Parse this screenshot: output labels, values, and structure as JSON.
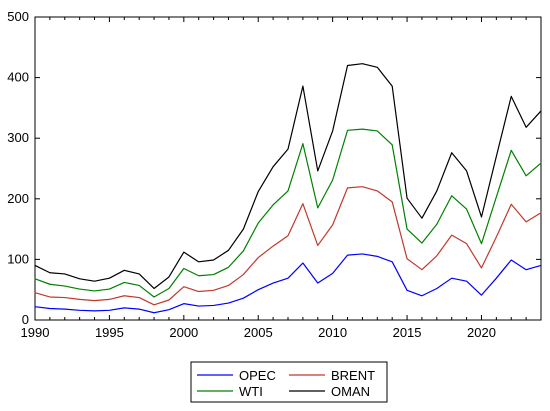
{
  "chart_data": {
    "type": "line",
    "title": "",
    "xlabel": "",
    "ylabel": "",
    "xlim": [
      1990,
      2024
    ],
    "ylim": [
      0,
      500
    ],
    "x_ticks": [
      1990,
      1995,
      2000,
      2005,
      2010,
      2015,
      2020
    ],
    "y_ticks": [
      0,
      100,
      200,
      300,
      400,
      500
    ],
    "grid": false,
    "legend_position": "bottom-center",
    "x": [
      1990,
      1991,
      1992,
      1993,
      1994,
      1995,
      1996,
      1997,
      1998,
      1999,
      2000,
      2001,
      2002,
      2003,
      2004,
      2005,
      2006,
      2007,
      2008,
      2009,
      2010,
      2011,
      2012,
      2013,
      2014,
      2015,
      2016,
      2017,
      2018,
      2019,
      2020,
      2021,
      2022,
      2023,
      2024
    ],
    "series": [
      {
        "name": "OPEC",
        "color": "#0000ff",
        "values": [
          22,
          19,
          18,
          16,
          15,
          16,
          20,
          18,
          12,
          17,
          27,
          23,
          24,
          28,
          36,
          50,
          61,
          69,
          94,
          61,
          77,
          107,
          109,
          105,
          96,
          49,
          40,
          52,
          69,
          64,
          41,
          69,
          99,
          83,
          90
        ]
      },
      {
        "name": "BRENT",
        "color": "#c0392b",
        "values": [
          45,
          38,
          37,
          34,
          32,
          34,
          40,
          37,
          25,
          33,
          55,
          47,
          49,
          57,
          75,
          103,
          122,
          139,
          192,
          123,
          157,
          218,
          220,
          213,
          195,
          101,
          83,
          106,
          140,
          126,
          86,
          137,
          191,
          162,
          177
        ]
      },
      {
        "name": "WTI",
        "color": "#008000",
        "values": [
          68,
          59,
          56,
          51,
          48,
          51,
          62,
          57,
          38,
          52,
          85,
          73,
          75,
          87,
          114,
          160,
          190,
          213,
          291,
          185,
          231,
          313,
          315,
          312,
          289,
          150,
          127,
          158,
          205,
          183,
          126,
          203,
          280,
          238,
          259
        ]
      },
      {
        "name": "OMAN",
        "color": "#000000",
        "values": [
          90,
          78,
          76,
          68,
          64,
          69,
          82,
          76,
          52,
          71,
          112,
          96,
          99,
          115,
          150,
          212,
          253,
          282,
          386,
          246,
          312,
          420,
          423,
          417,
          386,
          201,
          168,
          213,
          276,
          246,
          170,
          270,
          369,
          318,
          345
        ]
      }
    ]
  }
}
